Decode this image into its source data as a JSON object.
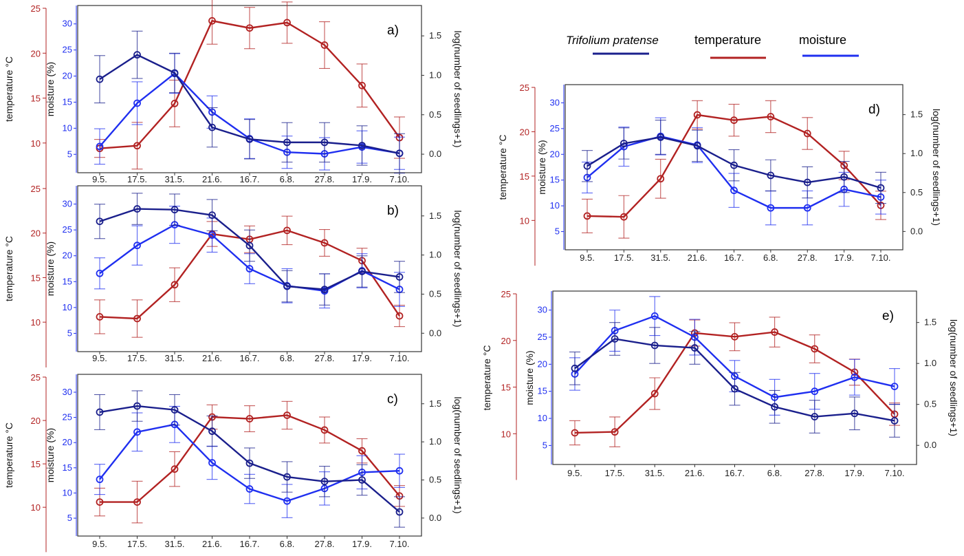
{
  "colors": {
    "species": "#1a1f8c",
    "temperature": "#b22222",
    "moisture": "#1f2ff0",
    "frame": "#333333",
    "tick_text": "#222222"
  },
  "legend": {
    "species_label": "Trifolium pratense",
    "temperature_label": "temperature",
    "moisture_label": "moisture"
  },
  "axis_titles": {
    "temperature": "temperature °C",
    "moisture": "moisture (%)",
    "seedlings": "log(number of seedlings+1)"
  },
  "chart_data": [
    {
      "panel_label": "a)",
      "type": "line",
      "categories": [
        "9.5.",
        "17.5.",
        "31.5.",
        "21.6.",
        "16.7.",
        "6.8.",
        "27.8.",
        "17.9.",
        "7.10."
      ],
      "temperature_ticks": [
        10,
        15,
        20,
        25
      ],
      "moisture_ticks": [
        5,
        10,
        15,
        20,
        25,
        30
      ],
      "seedling_ticks": [
        "0.0",
        "0.5",
        "1.0",
        "1.5"
      ],
      "temp_range": [
        7,
        25
      ],
      "moist_range": [
        2,
        33
      ],
      "seed_range": [
        -0.2,
        1.85
      ],
      "series": [
        {
          "key": "temperature",
          "values": [
            9.4,
            9.7,
            14.4,
            23.6,
            22.8,
            23.4,
            20.9,
            16.4,
            10.6
          ],
          "err": [
            1.0,
            2.6,
            2.6,
            2.6,
            2.3,
            2.3,
            2.6,
            2.4,
            2.3
          ]
        },
        {
          "key": "moisture",
          "values": [
            6.5,
            14.8,
            20.5,
            13.1,
            8.0,
            5.4,
            5.1,
            6.4,
            5.2
          ],
          "err": [
            3.4,
            4.1,
            3.8,
            3.1,
            3.8,
            3.1,
            3.1,
            3.1,
            3.1
          ]
        },
        {
          "key": "species",
          "values": [
            0.95,
            1.26,
            1.03,
            0.34,
            0.19,
            0.15,
            0.15,
            0.11,
            0.01
          ],
          "err": [
            0.3,
            0.3,
            0.25,
            0.25,
            0.25,
            0.25,
            0.25,
            0.25,
            0.25
          ]
        }
      ]
    },
    {
      "panel_label": "b)",
      "type": "line",
      "categories": [
        "9.5.",
        "17.5.",
        "31.5.",
        "21.6.",
        "16.7.",
        "6.8.",
        "27.8.",
        "17.9.",
        "7.10."
      ],
      "temperature_ticks": [
        10,
        15,
        20,
        25
      ],
      "moisture_ticks": [
        5,
        10,
        15,
        20,
        25,
        30
      ],
      "seedling_ticks": [
        "0.0",
        "0.5",
        "1.0",
        "1.5"
      ],
      "temp_range": [
        7,
        25
      ],
      "moist_range": [
        2,
        33
      ],
      "seed_range": [
        -0.2,
        1.85
      ],
      "series": [
        {
          "key": "temperature",
          "values": [
            10.6,
            10.4,
            14.2,
            19.9,
            19.3,
            20.3,
            18.9,
            16.9,
            10.7
          ],
          "err": [
            1.9,
            2.1,
            1.9,
            1.4,
            1.5,
            1.6,
            1.5,
            1.4,
            1.2
          ]
        },
        {
          "key": "moisture",
          "values": [
            16.6,
            22.0,
            26.0,
            24.0,
            17.5,
            14.2,
            13.2,
            17.1,
            13.5
          ],
          "err": [
            3.0,
            3.8,
            3.6,
            3.3,
            2.9,
            3.3,
            3.3,
            3.3,
            3.3
          ]
        },
        {
          "key": "species",
          "values": [
            1.43,
            1.59,
            1.58,
            1.51,
            1.12,
            0.6,
            0.56,
            0.79,
            0.72
          ],
          "err": [
            0.22,
            0.2,
            0.2,
            0.2,
            0.2,
            0.2,
            0.2,
            0.2,
            0.2
          ]
        }
      ]
    },
    {
      "panel_label": "c)",
      "type": "line",
      "categories": [
        "9.5.",
        "17.5.",
        "31.5.",
        "21.6.",
        "16.7.",
        "6.8.",
        "27.8.",
        "17.9.",
        "7.10."
      ],
      "temperature_ticks": [
        10,
        15,
        20,
        25
      ],
      "moisture_ticks": [
        5,
        10,
        15,
        20,
        25,
        30
      ],
      "seedling_ticks": [
        "0.0",
        "0.5",
        "1.0",
        "1.5"
      ],
      "temp_range": [
        7,
        25
      ],
      "moist_range": [
        2,
        33
      ],
      "seed_range": [
        -0.2,
        1.85
      ],
      "series": [
        {
          "key": "temperature",
          "values": [
            10.6,
            10.6,
            14.4,
            20.4,
            20.2,
            20.6,
            18.9,
            16.5,
            11.3
          ],
          "err": [
            1.6,
            2.4,
            2.0,
            1.4,
            1.5,
            1.6,
            1.5,
            1.4,
            1.2
          ]
        },
        {
          "key": "moisture",
          "values": [
            12.7,
            22.1,
            23.6,
            16.0,
            10.8,
            8.4,
            10.9,
            14.1,
            14.4
          ],
          "err": [
            3.0,
            3.8,
            3.6,
            3.3,
            2.9,
            3.3,
            3.3,
            3.3,
            3.3
          ]
        },
        {
          "key": "species",
          "values": [
            1.39,
            1.47,
            1.42,
            1.14,
            0.72,
            0.54,
            0.48,
            0.5,
            0.08
          ],
          "err": [
            0.23,
            0.2,
            0.2,
            0.2,
            0.2,
            0.2,
            0.2,
            0.2,
            0.2
          ]
        }
      ]
    },
    {
      "panel_label": "d)",
      "type": "line",
      "categories": [
        "9.5.",
        "17.5.",
        "31.5.",
        "21.6.",
        "16.7.",
        "6.8.",
        "27.8.",
        "17.9.",
        "7.10."
      ],
      "temperature_ticks": [
        10,
        15,
        20,
        25
      ],
      "moisture_ticks": [
        5,
        10,
        15,
        20,
        25,
        30
      ],
      "seedling_ticks": [
        "0.0",
        "0.5",
        "1.0",
        "1.5"
      ],
      "temp_range": [
        7,
        25
      ],
      "moist_range": [
        2,
        33
      ],
      "seed_range": [
        -0.2,
        1.85
      ],
      "series": [
        {
          "key": "temperature",
          "values": [
            10.5,
            10.4,
            14.7,
            21.9,
            21.3,
            21.7,
            19.8,
            16.2,
            11.7
          ],
          "err": [
            1.9,
            2.4,
            2.2,
            1.6,
            1.8,
            1.8,
            1.8,
            1.6,
            1.6
          ]
        },
        {
          "key": "moisture",
          "values": [
            15.5,
            21.5,
            23.5,
            21.8,
            13.0,
            9.6,
            9.6,
            13.2,
            11.7
          ],
          "err": [
            3.0,
            3.8,
            3.6,
            3.4,
            3.3,
            3.3,
            3.3,
            3.3,
            3.3
          ]
        },
        {
          "key": "species",
          "values": [
            0.84,
            1.13,
            1.21,
            1.1,
            0.85,
            0.72,
            0.63,
            0.7,
            0.56
          ],
          "err": [
            0.2,
            0.2,
            0.22,
            0.2,
            0.2,
            0.2,
            0.2,
            0.2,
            0.2
          ]
        }
      ]
    },
    {
      "panel_label": "e)",
      "type": "line",
      "categories": [
        "9.5.",
        "17.5.",
        "31.5.",
        "21.6.",
        "16.7.",
        "6.8.",
        "27.8.",
        "17.9.",
        "7.10."
      ],
      "temperature_ticks": [
        10,
        15,
        20,
        25
      ],
      "moisture_ticks": [
        5,
        10,
        15,
        20,
        25,
        30
      ],
      "seedling_ticks": [
        "0.0",
        "0.5",
        "1.0",
        "1.5"
      ],
      "temp_range": [
        7,
        25
      ],
      "moist_range": [
        2,
        33
      ],
      "seed_range": [
        -0.2,
        1.85
      ],
      "series": [
        {
          "key": "temperature",
          "values": [
            10.1,
            10.2,
            14.3,
            20.8,
            20.4,
            20.9,
            19.1,
            16.6,
            12.1
          ],
          "err": [
            1.3,
            1.6,
            1.7,
            1.4,
            1.5,
            1.6,
            1.5,
            1.4,
            1.2
          ]
        },
        {
          "key": "moisture",
          "values": [
            18.2,
            26.2,
            28.9,
            25.0,
            17.8,
            13.9,
            15.0,
            17.6,
            15.9
          ],
          "err": [
            3.0,
            3.8,
            3.6,
            3.3,
            2.9,
            3.3,
            3.3,
            3.3,
            3.3
          ]
        },
        {
          "key": "species",
          "values": [
            0.94,
            1.3,
            1.22,
            1.19,
            0.69,
            0.47,
            0.35,
            0.39,
            0.3
          ],
          "err": [
            0.2,
            0.2,
            0.22,
            0.2,
            0.2,
            0.2,
            0.2,
            0.2,
            0.2
          ]
        }
      ]
    }
  ]
}
